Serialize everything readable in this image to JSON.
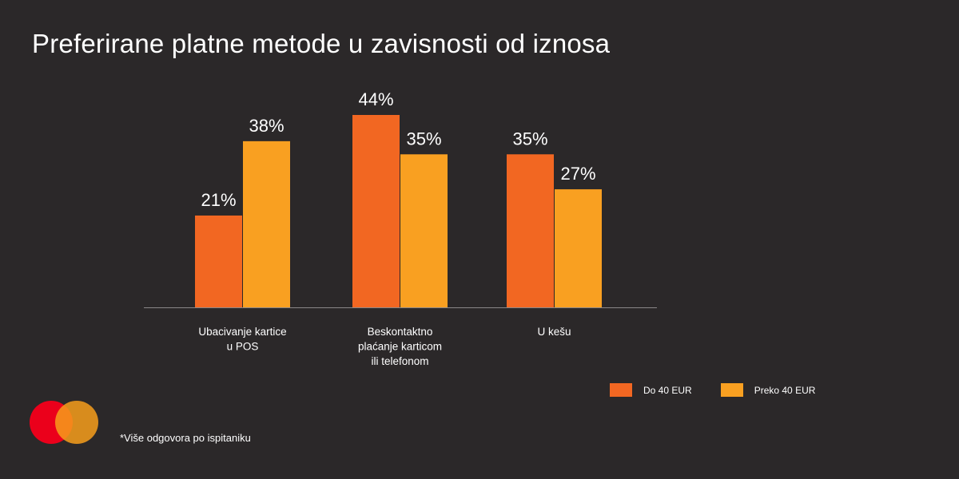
{
  "title": "Preferirane platne metode u zavisnosti od iznosa",
  "footnote": "*Više odgovora po ispitaniku",
  "colors": {
    "background": "#2b2829",
    "series_1": "#f26722",
    "series_2": "#f9a021",
    "axis": "#8a8788",
    "logo_red": "#eb001b",
    "logo_orange": "#f79e1b"
  },
  "logo": {
    "icon": "mastercard-circles-icon"
  },
  "chart_data": {
    "type": "bar",
    "title": "Preferirane platne metode u zavisnosti od iznosa",
    "categories": [
      [
        "Ubacivanje kartice",
        "u POS"
      ],
      [
        "Beskontaktno",
        "plaćanje karticom",
        "ili telefonom"
      ],
      [
        "U kešu"
      ]
    ],
    "series": [
      {
        "name": "Do 40 EUR",
        "values": [
          21,
          44,
          35
        ],
        "labels": [
          "21%",
          "44%",
          "35%"
        ],
        "color": "#f26722"
      },
      {
        "name": "Preko 40 EUR",
        "values": [
          38,
          35,
          27
        ],
        "labels": [
          "38%",
          "35%",
          "27%"
        ],
        "color": "#f9a021"
      }
    ],
    "ylim": [
      0,
      44
    ],
    "grid": false,
    "legend_position": "bottom-right",
    "xlabel": "",
    "ylabel": ""
  }
}
